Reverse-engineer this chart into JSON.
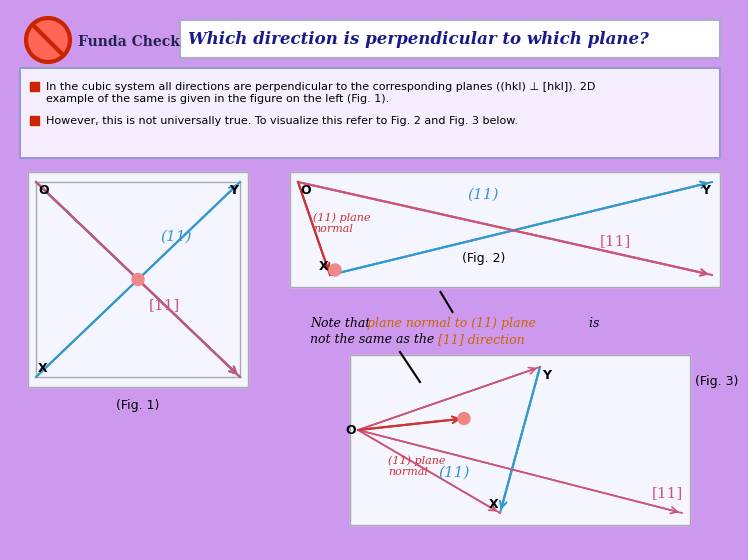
{
  "bg_color": "#cc99ee",
  "title_box_color": "#ffffff",
  "title_text": "Which direction is perpendicular to which plane?",
  "title_color": "#1a1a8c",
  "header_label": "Funda Check",
  "bullet1": "In the cubic system all directions are perpendicular to the corresponding planes ((hkl) ⊥ [hkl]). 2D",
  "bullet1b": "example of the same is given in the figure on the left (Fig. 1).",
  "bullet2": "However, this is not universally true. To visualize this refer to Fig. 2 and Fig. 3 below.",
  "text_box_border": "#6666cc",
  "text_color": "#000000",
  "bullet_color": "#cc2200",
  "fig1_label": "(Fig. 1)",
  "fig2_label": "(Fig. 2)",
  "fig3_label": "(Fig. 3)",
  "note_line1": "Note that ",
  "note_line1b": "plane normal to (11) plane",
  "note_line1c": " is",
  "note_line2a": "not the same as the ",
  "note_line2b": "[11] direction",
  "cyan_color": "#3399cc",
  "dark_red_color": "#cc5577",
  "red_label_color": "#cc3333",
  "pink_dot": "#ee8888",
  "fig_bg": "#f5f5ff",
  "fig_border": "#aaaaaa"
}
